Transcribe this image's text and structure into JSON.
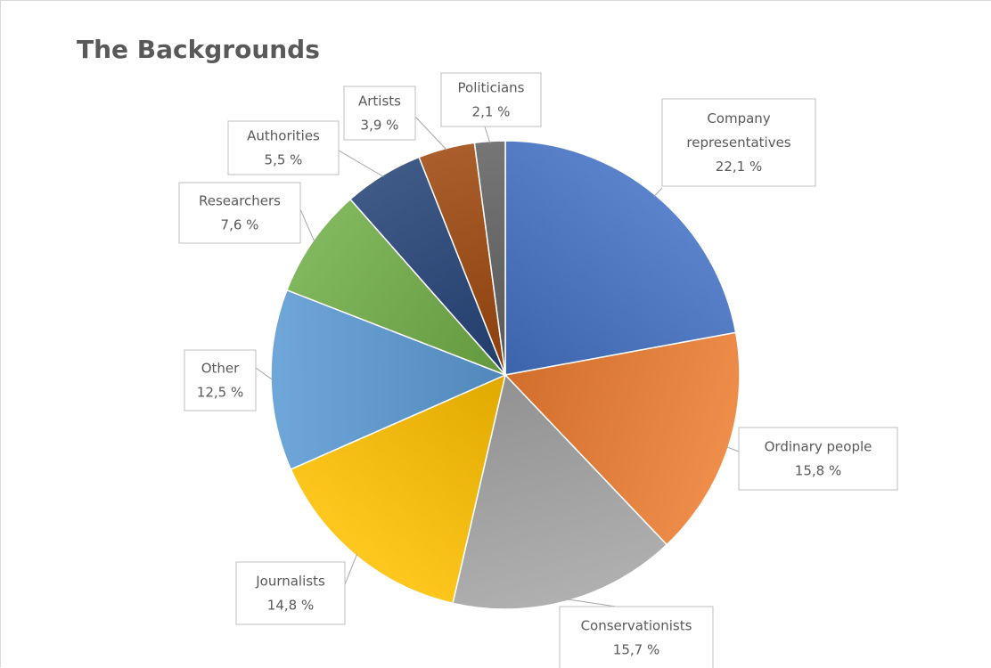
{
  "chart_data": {
    "type": "pie",
    "title": "The Backgrounds",
    "slices": [
      {
        "name": "Company representatives",
        "value": 22.1,
        "label_lines": [
          "Company",
          "representatives",
          "22,1 %"
        ],
        "color": "#4472c4"
      },
      {
        "name": "Ordinary people",
        "value": 15.8,
        "label_lines": [
          "Ordinary people",
          "15,8 %"
        ],
        "color": "#ed7d31"
      },
      {
        "name": "Conservationists",
        "value": 15.7,
        "label_lines": [
          "Conservationists",
          "15,7 %"
        ],
        "color": "#a5a5a5"
      },
      {
        "name": "Journalists",
        "value": 14.8,
        "label_lines": [
          "Journalists",
          "14,8 %"
        ],
        "color": "#ffc000"
      },
      {
        "name": "Other",
        "value": 12.5,
        "label_lines": [
          "Other",
          "12,5 %"
        ],
        "color": "#5b9bd5"
      },
      {
        "name": "Researchers",
        "value": 7.6,
        "label_lines": [
          "Researchers",
          "7,6 %"
        ],
        "color": "#70ad47"
      },
      {
        "name": "Authorities",
        "value": 5.5,
        "label_lines": [
          "Authorities",
          "5,5 %"
        ],
        "color": "#264478"
      },
      {
        "name": "Artists",
        "value": 3.9,
        "label_lines": [
          "Artists",
          "3,9 %"
        ],
        "color": "#9e480e"
      },
      {
        "name": "Politicians",
        "value": 2.1,
        "label_lines": [
          "Politicians",
          "2,1 %"
        ],
        "color": "#636363"
      }
    ],
    "legend": "none"
  }
}
